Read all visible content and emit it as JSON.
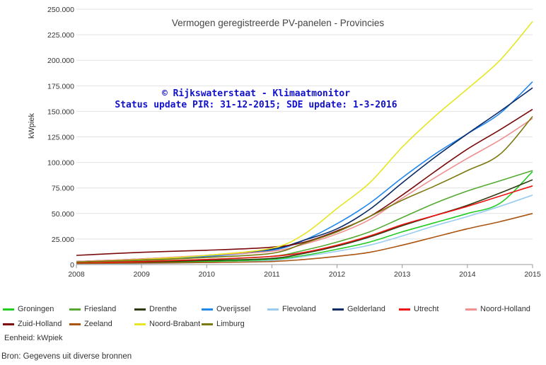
{
  "chart_data": {
    "type": "line",
    "title": "Vermogen geregistreerde PV-panelen - Provincies",
    "watermark_line1": "© Rijkswaterstaat - Klimaatmonitor",
    "watermark_line2": "Status update PIR: 31-12-2015; SDE update: 1-3-2016",
    "ylabel": "kWpiek",
    "xlabel": "",
    "ylim": [
      0,
      250000
    ],
    "xlim": [
      2008,
      2015
    ],
    "x_ticks": [
      2008,
      2009,
      2010,
      2011,
      2012,
      2013,
      2014,
      2015
    ],
    "y_ticks": [
      0,
      25000,
      50000,
      75000,
      100000,
      125000,
      150000,
      175000,
      200000,
      225000,
      250000
    ],
    "x_tick_labels": [
      "2008",
      "2009",
      "2010",
      "2011",
      "2012",
      "2013",
      "2014",
      "2015"
    ],
    "y_tick_labels": [
      "0",
      "25.000",
      "50.000",
      "75.000",
      "100.000",
      "125.000",
      "150.000",
      "175.000",
      "200.000",
      "225.000",
      "250.000"
    ],
    "grid": true,
    "legend_position": "bottom",
    "x": [
      2008,
      2009,
      2010,
      2011,
      2011.5,
      2012,
      2012.5,
      2013,
      2013.5,
      2014,
      2014.5,
      2015
    ],
    "series": [
      {
        "name": "Groningen",
        "color": "#22cc22",
        "values": [
          1000,
          1800,
          3000,
          5000,
          9000,
          15000,
          22000,
          32000,
          41000,
          50000,
          60000,
          91000
        ]
      },
      {
        "name": "Friesland",
        "color": "#55aa33",
        "values": [
          2000,
          3500,
          5000,
          8000,
          14000,
          22000,
          32000,
          46000,
          60000,
          72000,
          82000,
          92000
        ]
      },
      {
        "name": "Drenthe",
        "color": "#2e3a10",
        "values": [
          1500,
          2500,
          4000,
          6000,
          11000,
          18000,
          27000,
          38000,
          48000,
          58000,
          70000,
          83000
        ]
      },
      {
        "name": "Overijssel",
        "color": "#2288ee",
        "values": [
          3000,
          5000,
          8000,
          14000,
          24000,
          40000,
          60000,
          85000,
          108000,
          128000,
          148000,
          179000
        ]
      },
      {
        "name": "Flevoland",
        "color": "#99ccf0",
        "values": [
          500,
          1000,
          2000,
          4000,
          8000,
          13000,
          19000,
          28000,
          38000,
          47000,
          57000,
          68000
        ]
      },
      {
        "name": "Gelderland",
        "color": "#0a2a66",
        "values": [
          3000,
          5500,
          9000,
          15000,
          24000,
          35000,
          54000,
          80000,
          105000,
          128000,
          150000,
          173000
        ]
      },
      {
        "name": "Utrecht",
        "color": "#ee1111",
        "values": [
          1500,
          3000,
          5000,
          8000,
          12000,
          19000,
          28000,
          39000,
          48000,
          57000,
          67000,
          77000
        ]
      },
      {
        "name": "Noord-Holland",
        "color": "#f09090",
        "values": [
          3000,
          5500,
          9000,
          13000,
          20000,
          30000,
          44000,
          65000,
          85000,
          104000,
          122000,
          143000
        ]
      },
      {
        "name": "Zuid-Holland",
        "color": "#7a0a0a",
        "values": [
          9000,
          12000,
          14000,
          17000,
          22000,
          33000,
          47000,
          68000,
          91000,
          113000,
          132000,
          152000
        ]
      },
      {
        "name": "Zeeland",
        "color": "#aa5511",
        "values": [
          1000,
          1500,
          2000,
          3000,
          5000,
          8000,
          12000,
          19000,
          27000,
          35000,
          42000,
          50000
        ]
      },
      {
        "name": "Noord-Brabant",
        "color": "#e6e622",
        "values": [
          2500,
          5000,
          9000,
          16000,
          30000,
          55000,
          80000,
          115000,
          145000,
          172000,
          200000,
          238000
        ]
      },
      {
        "name": "Limburg",
        "color": "#7a7a10",
        "values": [
          2500,
          4500,
          7000,
          11000,
          21000,
          32000,
          47000,
          63000,
          77000,
          92000,
          108000,
          145000
        ]
      }
    ]
  },
  "notes": {
    "unit": "Eenheid: kWpiek",
    "source": "Bron: Gegevens uit diverse bronnen"
  }
}
